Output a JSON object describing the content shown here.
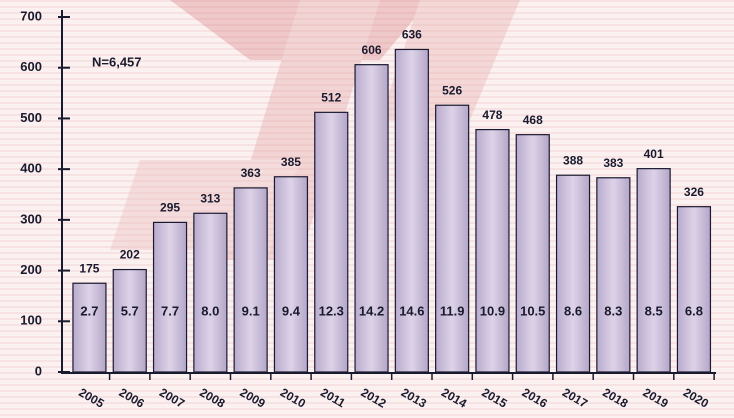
{
  "chart_data": {
    "type": "bar",
    "annotation": "N=6,457",
    "categories": [
      "2005",
      "2006",
      "2007",
      "2008",
      "2009",
      "2010",
      "2011",
      "2012",
      "2013",
      "2014",
      "2015",
      "2016",
      "2017",
      "2018",
      "2019",
      "2020"
    ],
    "values": [
      175,
      202,
      295,
      313,
      363,
      385,
      512,
      606,
      636,
      526,
      478,
      468,
      388,
      383,
      401,
      326
    ],
    "inner_labels": [
      "2.7",
      "5.7",
      "7.7",
      "8.0",
      "9.1",
      "9.4",
      "12.3",
      "14.2",
      "14.6",
      "11.9",
      "10.9",
      "10.5",
      "8.6",
      "8.3",
      "8.5",
      "6.8"
    ],
    "color": "#c9bdd9",
    "ylim": [
      0,
      700
    ],
    "yticks": [
      0,
      100,
      200,
      300,
      400,
      500,
      600,
      700
    ]
  }
}
